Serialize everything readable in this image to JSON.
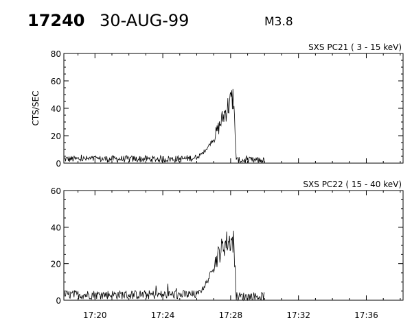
{
  "header": {
    "event_id": "17240",
    "date": "30-AUG-99",
    "flare_class": "M3.8"
  },
  "x_ticks": [
    "17:20",
    "17:24",
    "17:28",
    "17:32",
    "17:36"
  ],
  "chart_data": [
    {
      "type": "line",
      "title": "SXS PC21  (  3 - 15 keV)",
      "ylabel": "CTS/SEC",
      "xlabel": "",
      "xlim": [
        "17:18:10",
        "17:38:10"
      ],
      "ylim": [
        0,
        80
      ],
      "y_ticks": [
        "0",
        "20",
        "40",
        "60",
        "80"
      ],
      "grid": false,
      "series": [
        {
          "x": [
            "17:18:10",
            "17:19:00",
            "17:20:00",
            "17:21:00",
            "17:22:00",
            "17:23:00",
            "17:24:00",
            "17:25:00",
            "17:26:00",
            "17:26:20",
            "17:26:40",
            "17:27:00",
            "17:27:20",
            "17:27:40",
            "17:28:00",
            "17:28:10",
            "17:28:20",
            "17:29:00",
            "17:29:40",
            "17:30:00"
          ],
          "y": [
            3,
            3,
            3,
            3,
            3,
            3,
            3,
            3,
            4,
            7,
            12,
            18,
            27,
            37,
            45,
            48,
            2,
            2,
            2,
            2
          ]
        }
      ]
    },
    {
      "type": "line",
      "title": "SXS PC22  ( 15 - 40 keV)",
      "ylabel": "",
      "xlabel": "",
      "xlim": [
        "17:18:10",
        "17:38:10"
      ],
      "ylim": [
        0,
        60
      ],
      "y_ticks": [
        "0",
        "20",
        "40",
        "60"
      ],
      "grid": false,
      "series": [
        {
          "x": [
            "17:18:10",
            "17:19:00",
            "17:20:00",
            "17:21:00",
            "17:22:00",
            "17:23:00",
            "17:24:00",
            "17:25:00",
            "17:26:00",
            "17:26:20",
            "17:26:40",
            "17:27:00",
            "17:27:20",
            "17:27:40",
            "17:28:00",
            "17:28:10",
            "17:28:20",
            "17:29:00",
            "17:29:40",
            "17:30:00"
          ],
          "y": [
            3,
            3,
            3,
            3,
            3,
            3,
            3,
            3,
            3,
            6,
            11,
            19,
            26,
            31,
            33,
            32,
            2,
            2,
            2,
            2
          ]
        }
      ]
    }
  ]
}
